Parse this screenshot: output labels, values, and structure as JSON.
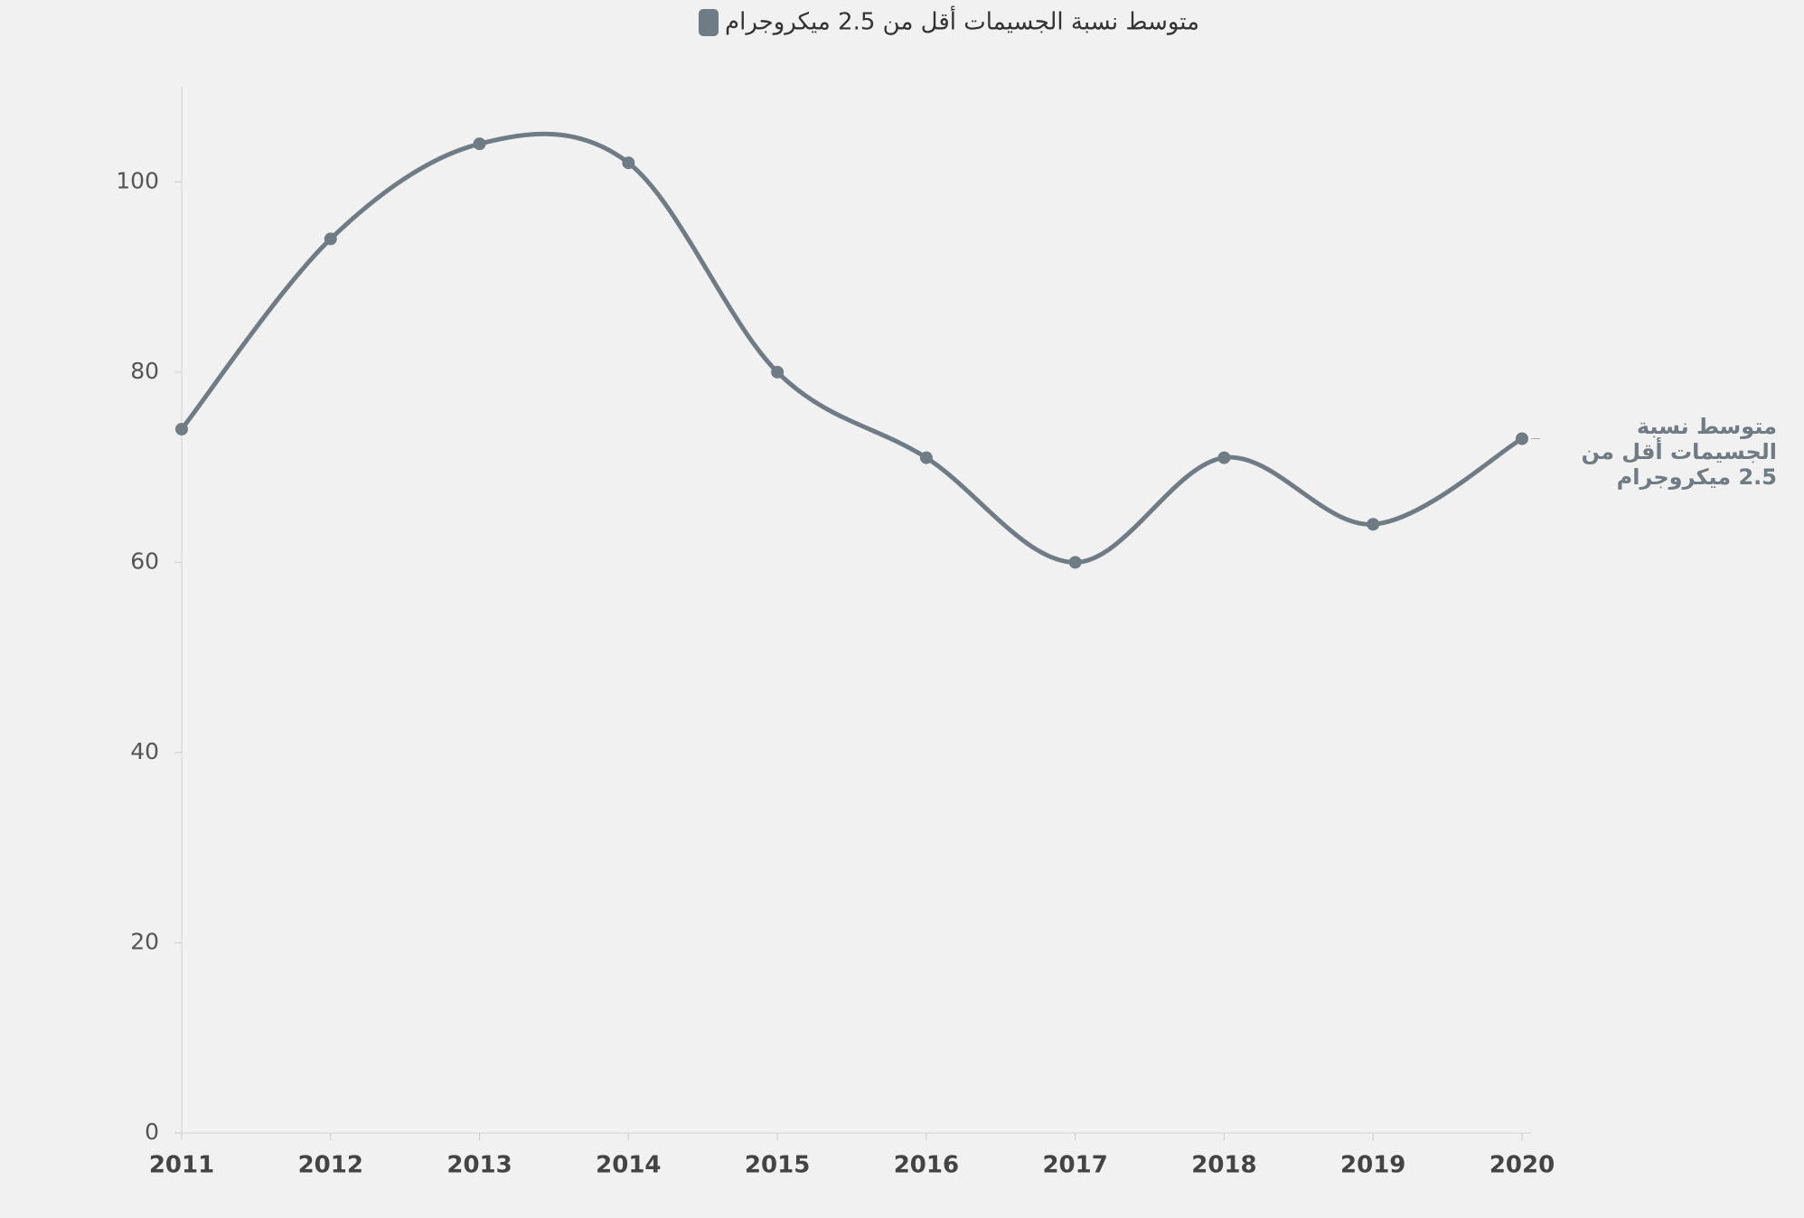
{
  "chart_data": {
    "type": "line",
    "categories": [
      "2011",
      "2012",
      "2013",
      "2014",
      "2015",
      "2016",
      "2017",
      "2018",
      "2019",
      "2020"
    ],
    "series": [
      {
        "name": "متوسط نسبة الجسيمات أقل من 2.5 ميكروجرام",
        "color": "#6f7c85",
        "values": [
          74,
          94,
          104,
          102,
          80,
          71,
          60,
          71,
          64,
          73
        ]
      }
    ],
    "ylim": [
      0,
      110
    ],
    "yticks": [
      0,
      20,
      40,
      60,
      80,
      100
    ],
    "legend": "top"
  }
}
